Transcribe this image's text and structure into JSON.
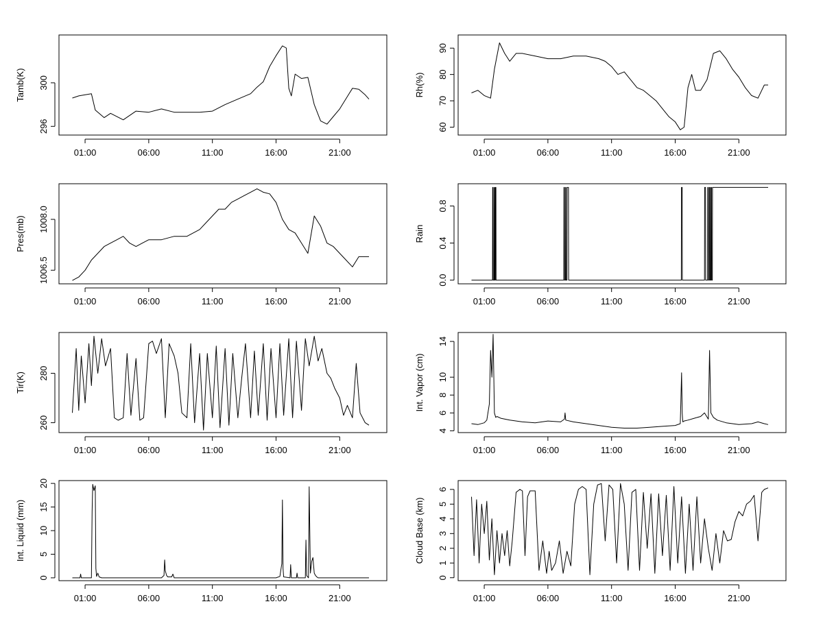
{
  "chart_data": [
    {
      "type": "line",
      "ylabel": "Tamb(K)",
      "x_ticks": [
        "01:00",
        "06:00",
        "11:00",
        "16:00",
        "21:00"
      ],
      "y_ticks": [
        296,
        300
      ],
      "ylim": [
        295.2,
        304.4
      ],
      "x_unit": "hour of day",
      "series": [
        {
          "x": [
            0,
            0.5,
            1,
            1.5,
            1.8,
            2.5,
            3,
            4,
            5,
            6,
            7,
            8,
            9,
            10,
            11,
            12,
            13,
            14,
            14.5,
            15,
            15.5,
            16,
            16.5,
            16.8,
            17.0,
            17.2,
            17.5,
            18,
            18.5,
            19,
            19.5,
            20,
            20.5,
            21,
            22,
            22.5,
            23,
            23.3
          ],
          "values": [
            298.6,
            298.8,
            298.9,
            299.0,
            297.5,
            296.8,
            297.2,
            296.6,
            297.4,
            297.3,
            297.6,
            297.3,
            297.3,
            297.3,
            297.4,
            298.0,
            298.5,
            299.0,
            299.6,
            300.1,
            301.5,
            302.5,
            303.4,
            303.2,
            299.5,
            298.8,
            300.8,
            300.4,
            300.5,
            298.0,
            296.5,
            296.2,
            296.9,
            297.6,
            299.5,
            299.4,
            298.9,
            298.5
          ]
        }
      ]
    },
    {
      "type": "line",
      "ylabel": "Rh(%)",
      "x_ticks": [
        "01:00",
        "06:00",
        "11:00",
        "16:00",
        "21:00"
      ],
      "y_ticks": [
        60,
        70,
        80,
        90
      ],
      "ylim": [
        57,
        95
      ],
      "x_unit": "hour of day",
      "series": [
        {
          "x": [
            0,
            0.5,
            1,
            1.5,
            1.8,
            2.2,
            2.6,
            3,
            3.5,
            4,
            5,
            6,
            7,
            8,
            9,
            10,
            10.5,
            11,
            11.5,
            12,
            12.5,
            13,
            13.5,
            14,
            14.5,
            15,
            15.5,
            16,
            16.4,
            16.7,
            17.0,
            17.3,
            17.6,
            18,
            18.5,
            19,
            19.5,
            20,
            20.5,
            21,
            21.5,
            22,
            22.5,
            23,
            23.3
          ],
          "values": [
            73,
            74,
            72,
            71,
            82,
            92,
            88,
            85,
            88,
            88,
            87,
            86,
            86,
            87,
            87,
            86,
            85,
            83,
            80,
            81,
            78,
            75,
            74,
            72,
            70,
            67,
            64,
            62,
            59,
            60,
            75,
            80,
            74,
            74,
            78,
            88,
            89,
            86,
            82,
            79,
            75,
            72,
            71,
            76,
            76
          ]
        }
      ]
    },
    {
      "type": "line",
      "ylabel": "Pres(mb)",
      "x_ticks": [
        "01:00",
        "06:00",
        "11:00",
        "16:00",
        "21:00"
      ],
      "y_ticks": [
        1006.5,
        1008.0
      ],
      "y_tick_labels": [
        "1006.5",
        "1008.0"
      ],
      "ylim": [
        1006.1,
        1009.05
      ],
      "x_unit": "hour of day",
      "series": [
        {
          "x": [
            0,
            0.5,
            1,
            1.5,
            2,
            2.5,
            3,
            3.5,
            4,
            4.5,
            5,
            5.5,
            6,
            7,
            8,
            9,
            10,
            10.5,
            11,
            11.5,
            12,
            12.5,
            13,
            13.5,
            14,
            14.5,
            15,
            15.5,
            16,
            16.5,
            17,
            17.5,
            18,
            18.5,
            19,
            19.5,
            20,
            20.5,
            21,
            21.5,
            22,
            22.5,
            23,
            23.3
          ],
          "values": [
            1006.2,
            1006.3,
            1006.5,
            1006.8,
            1007.0,
            1007.2,
            1007.3,
            1007.4,
            1007.5,
            1007.3,
            1007.2,
            1007.3,
            1007.4,
            1007.4,
            1007.5,
            1007.5,
            1007.7,
            1007.9,
            1008.1,
            1008.3,
            1008.3,
            1008.5,
            1008.6,
            1008.7,
            1008.8,
            1008.9,
            1008.8,
            1008.75,
            1008.5,
            1008.0,
            1007.7,
            1007.6,
            1007.3,
            1007.0,
            1008.1,
            1007.8,
            1007.3,
            1007.2,
            1007.0,
            1006.8,
            1006.6,
            1006.9,
            1006.9,
            1006.9
          ]
        }
      ]
    },
    {
      "type": "line",
      "ylabel": "Rain",
      "x_ticks": [
        "01:00",
        "06:00",
        "11:00",
        "16:00",
        "21:00"
      ],
      "y_ticks": [
        0.0,
        0.4,
        0.8
      ],
      "y_tick_labels": [
        "0.0",
        "0.4",
        "0.8"
      ],
      "ylim": [
        -0.04,
        1.04
      ],
      "x_unit": "hour of day",
      "series": [
        {
          "x": [
            0,
            1.65,
            1.66,
            1.7,
            1.71,
            1.78,
            1.79,
            1.82,
            1.83,
            1.87,
            1.88,
            1.92,
            1.93,
            7.25,
            7.26,
            7.3,
            7.31,
            7.38,
            7.39,
            7.42,
            7.43,
            7.5,
            7.51,
            7.62,
            7.63,
            16.48,
            16.49,
            16.55,
            16.56,
            18.3,
            18.31,
            18.38,
            18.39,
            18.55,
            18.56,
            18.6,
            18.61,
            18.68,
            18.69,
            18.73,
            18.74,
            18.8,
            18.81,
            18.85,
            18.86,
            18.92,
            18.93,
            23.3
          ],
          "values": [
            0,
            0,
            1,
            1,
            0,
            0,
            1,
            1,
            0,
            0,
            1,
            1,
            0,
            0,
            1,
            1,
            0,
            0,
            1,
            1,
            0,
            0,
            1,
            1,
            0,
            0,
            1,
            1,
            0,
            0,
            1,
            1,
            0,
            0,
            1,
            1,
            0,
            0,
            1,
            1,
            0,
            0,
            1,
            1,
            0,
            0,
            1,
            1
          ]
        }
      ]
    },
    {
      "type": "line",
      "ylabel": "Tir(K)",
      "x_ticks": [
        "01:00",
        "06:00",
        "11:00",
        "16:00",
        "21:00"
      ],
      "y_ticks": [
        260,
        280
      ],
      "ylim": [
        256,
        296.5
      ],
      "x_unit": "hour of day",
      "series": [
        {
          "x": [
            0,
            0.3,
            0.5,
            0.7,
            1.0,
            1.3,
            1.5,
            1.7,
            2.0,
            2.3,
            2.6,
            3.0,
            3.3,
            3.6,
            4.0,
            4.3,
            4.6,
            5.0,
            5.3,
            5.6,
            6.0,
            6.3,
            6.6,
            7.0,
            7.3,
            7.6,
            8.0,
            8.3,
            8.6,
            9.0,
            9.3,
            9.6,
            10.0,
            10.3,
            10.6,
            11.0,
            11.3,
            11.6,
            12.0,
            12.3,
            12.6,
            13.0,
            13.3,
            13.6,
            14.0,
            14.3,
            14.6,
            15.0,
            15.3,
            15.6,
            16.0,
            16.3,
            16.6,
            17.0,
            17.3,
            17.6,
            18.0,
            18.3,
            18.6,
            19.0,
            19.3,
            19.6,
            20.0,
            20.3,
            20.6,
            21.0,
            21.3,
            21.6,
            22.0,
            22.3,
            22.6,
            23.0,
            23.3
          ],
          "values": [
            264,
            290,
            265,
            287,
            268,
            292,
            275,
            295,
            280,
            294,
            283,
            290,
            262,
            261,
            262,
            288,
            263,
            286,
            261,
            262,
            292,
            293,
            288,
            294,
            262,
            292,
            287,
            280,
            264,
            262,
            292,
            260,
            288,
            257,
            288,
            262,
            291,
            258,
            290,
            259,
            288,
            262,
            278,
            292,
            262,
            289,
            263,
            292,
            261,
            290,
            262,
            292,
            263,
            294,
            262,
            293,
            265,
            294,
            283,
            295,
            285,
            290,
            280,
            278,
            274,
            270,
            263,
            267,
            262,
            284,
            264,
            260,
            259
          ]
        }
      ]
    },
    {
      "type": "line",
      "ylabel": "Int. Vapor (cm)",
      "x_ticks": [
        "01:00",
        "06:00",
        "11:00",
        "16:00",
        "21:00"
      ],
      "y_ticks": [
        4,
        6,
        8,
        10,
        14
      ],
      "ylim": [
        3.8,
        15.0
      ],
      "x_unit": "hour of day",
      "series": [
        {
          "x": [
            0,
            0.5,
            1.0,
            1.2,
            1.4,
            1.5,
            1.6,
            1.7,
            1.8,
            1.9,
            2.0,
            2.3,
            3,
            4,
            5,
            6,
            7,
            7.3,
            7.35,
            7.4,
            8,
            9,
            10,
            11,
            12,
            13,
            14,
            15,
            16,
            16.4,
            16.5,
            16.55,
            16.6,
            16.7,
            17,
            17.5,
            18.0,
            18.3,
            18.6,
            18.7,
            18.8,
            19.0,
            19.3,
            20,
            21,
            22,
            22.5,
            23,
            23.3
          ],
          "values": [
            4.8,
            4.7,
            4.9,
            5.2,
            7.0,
            13.0,
            10.0,
            14.8,
            6.0,
            5.5,
            5.6,
            5.4,
            5.2,
            5.0,
            4.9,
            5.1,
            5.0,
            5.3,
            6.0,
            5.2,
            5.0,
            4.8,
            4.6,
            4.4,
            4.3,
            4.3,
            4.4,
            4.5,
            4.6,
            4.8,
            10.5,
            6.0,
            5.0,
            5.1,
            5.2,
            5.4,
            5.6,
            6.0,
            5.3,
            13.0,
            6.0,
            5.5,
            5.2,
            4.9,
            4.7,
            4.8,
            5.0,
            4.8,
            4.7
          ]
        }
      ]
    },
    {
      "type": "line",
      "ylabel": "Int. Liquid (mm)",
      "x_ticks": [
        "01:00",
        "06:00",
        "11:00",
        "16:00",
        "21:00"
      ],
      "y_ticks": [
        0,
        5,
        10,
        15,
        20
      ],
      "ylim": [
        -0.6,
        20.6
      ],
      "x_unit": "hour of day",
      "series": [
        {
          "x": [
            0,
            0.6,
            0.65,
            0.7,
            1.5,
            1.55,
            1.6,
            1.7,
            1.8,
            1.85,
            1.9,
            2.0,
            2.1,
            2.3,
            7,
            7.2,
            7.25,
            7.3,
            7.4,
            7.5,
            7.8,
            7.9,
            8.0,
            14,
            16.0,
            16.3,
            16.45,
            16.5,
            16.55,
            16.6,
            17.1,
            17.15,
            17.2,
            17.6,
            17.65,
            17.7,
            18.3,
            18.35,
            18.4,
            18.55,
            18.6,
            18.65,
            18.7,
            18.8,
            18.9,
            19.0,
            19.1,
            19.2,
            19.3,
            23.3
          ],
          "values": [
            0,
            0,
            0.8,
            0,
            0,
            14.0,
            19.8,
            18.5,
            19.5,
            2.0,
            0.3,
            1.0,
            0.2,
            0,
            0,
            0.5,
            3.8,
            1.5,
            0.5,
            0.2,
            0.2,
            0.8,
            0,
            0,
            0,
            0.3,
            3.0,
            16.5,
            2.0,
            0.2,
            0,
            2.8,
            0,
            0,
            1.0,
            0,
            0,
            8.0,
            0.5,
            0,
            19.3,
            10.0,
            1.0,
            3.5,
            4.3,
            1.0,
            0.5,
            0.2,
            0,
            0
          ]
        }
      ]
    },
    {
      "type": "line",
      "ylabel": "Cloud Base (km)",
      "x_ticks": [
        "01:00",
        "06:00",
        "11:00",
        "16:00",
        "21:00"
      ],
      "y_ticks": [
        0,
        1,
        2,
        3,
        4,
        5,
        6
      ],
      "ylim": [
        -0.2,
        6.6
      ],
      "x_unit": "hour of day",
      "series": [
        {
          "x": [
            0,
            0.2,
            0.4,
            0.6,
            0.8,
            1.0,
            1.2,
            1.4,
            1.6,
            1.8,
            2.0,
            2.2,
            2.4,
            2.6,
            2.8,
            3.0,
            3.2,
            3.5,
            3.8,
            4.0,
            4.2,
            4.4,
            4.6,
            4.8,
            5.0,
            5.3,
            5.6,
            5.9,
            6.1,
            6.3,
            6.6,
            6.9,
            7.2,
            7.5,
            7.8,
            8.1,
            8.4,
            8.7,
            9.0,
            9.3,
            9.6,
            9.9,
            10.2,
            10.5,
            10.8,
            11.1,
            11.4,
            11.7,
            12.0,
            12.3,
            12.6,
            12.9,
            13.2,
            13.5,
            13.8,
            14.1,
            14.4,
            14.7,
            15.0,
            15.3,
            15.6,
            15.9,
            16.2,
            16.5,
            16.8,
            17.1,
            17.4,
            17.7,
            18.0,
            18.3,
            18.6,
            18.9,
            19.2,
            19.5,
            19.8,
            20.1,
            20.4,
            20.7,
            21.0,
            21.3,
            21.6,
            21.9,
            22.2,
            22.5,
            22.8,
            23.0,
            23.3
          ],
          "values": [
            5.5,
            1.5,
            5.3,
            1.0,
            5.0,
            3.0,
            5.2,
            1.2,
            4.0,
            0.2,
            3.2,
            1.0,
            3.0,
            1.5,
            3.2,
            0.8,
            2.5,
            5.8,
            6.0,
            5.9,
            1.5,
            5.5,
            5.9,
            5.9,
            5.9,
            0.5,
            2.5,
            0.3,
            1.8,
            0.5,
            1.0,
            2.5,
            0.3,
            1.8,
            0.8,
            5.0,
            6.0,
            6.2,
            6.0,
            0.2,
            5.0,
            6.3,
            6.4,
            2.5,
            6.3,
            6.0,
            1.0,
            6.4,
            5.0,
            0.5,
            5.8,
            6.0,
            0.5,
            5.8,
            2.0,
            5.7,
            0.3,
            5.7,
            1.5,
            5.6,
            0.5,
            6.2,
            1.0,
            5.5,
            0.3,
            5.0,
            0.5,
            5.5,
            1.0,
            4.0,
            2.0,
            0.5,
            3.0,
            1.0,
            3.2,
            2.5,
            2.6,
            3.8,
            4.5,
            4.2,
            5.0,
            5.2,
            5.6,
            2.5,
            5.8,
            6.0,
            6.1
          ]
        }
      ]
    }
  ]
}
